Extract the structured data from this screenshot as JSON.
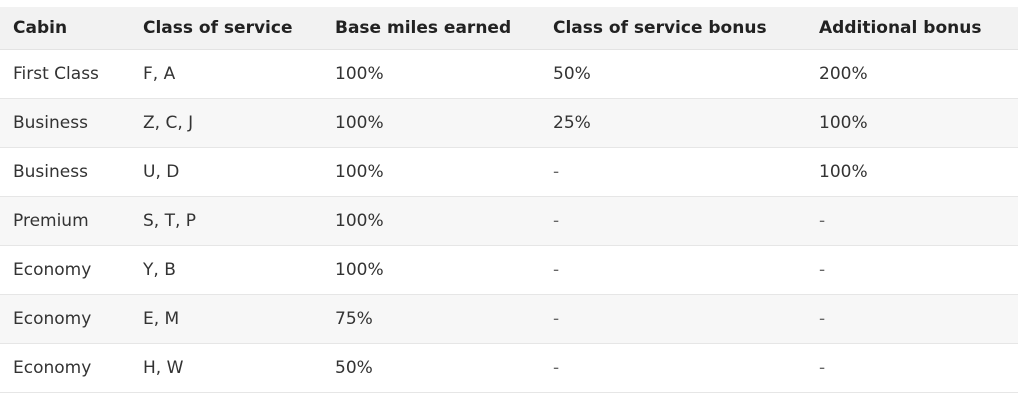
{
  "table": {
    "headers": [
      "Cabin",
      "Class of service",
      "Base miles earned",
      "Class of service bonus",
      "Additional bonus"
    ],
    "rows": [
      [
        "First Class",
        "F, A",
        "100%",
        "50%",
        "200%"
      ],
      [
        "Business",
        "Z, C, J",
        "100%",
        "25%",
        "100%"
      ],
      [
        "Business",
        "U, D",
        "100%",
        "-",
        "100%"
      ],
      [
        "Premium",
        "S, T, P",
        "100%",
        "-",
        "-"
      ],
      [
        "Economy",
        "Y, B",
        "100%",
        "-",
        "-"
      ],
      [
        "Economy",
        "E, M",
        "75%",
        "-",
        "-"
      ],
      [
        "Economy",
        "H, W",
        "50%",
        "-",
        "-"
      ]
    ]
  }
}
